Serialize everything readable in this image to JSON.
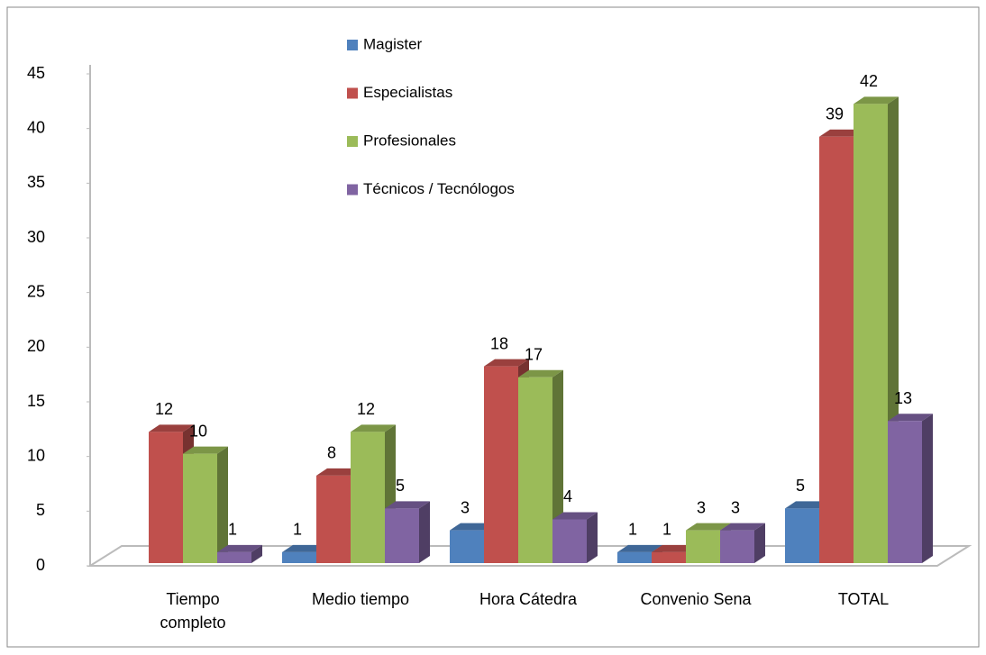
{
  "chart_data": {
    "type": "bar3d",
    "categories": [
      "Tiempo completo",
      "Medio tiempo",
      "Hora Cátedra",
      "Convenio Sena",
      "TOTAL"
    ],
    "series": [
      {
        "name": "Magister",
        "color": "#4f81bd",
        "values": [
          null,
          1,
          3,
          1,
          5
        ]
      },
      {
        "name": "Especialistas",
        "color": "#c0504d",
        "values": [
          12,
          8,
          18,
          1,
          39
        ]
      },
      {
        "name": "Profesionales",
        "color": "#9bbb59",
        "values": [
          10,
          12,
          17,
          3,
          42
        ]
      },
      {
        "name": "Técnicos / Tecnólogos",
        "color": "#8064a2",
        "values": [
          1,
          5,
          4,
          3,
          13
        ]
      }
    ],
    "ylim": [
      0,
      45
    ],
    "yticks": [
      0,
      5,
      10,
      15,
      20,
      25,
      30,
      35,
      40,
      45
    ]
  }
}
